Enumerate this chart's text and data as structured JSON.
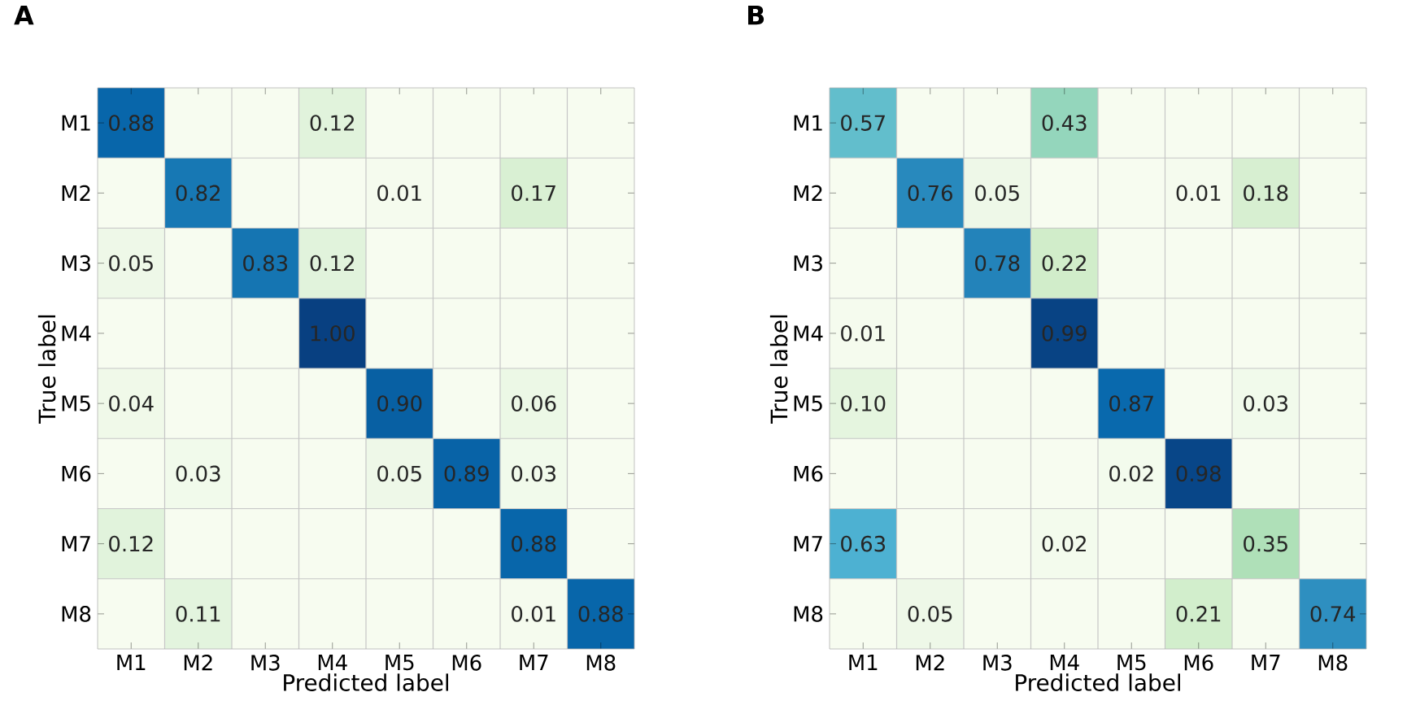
{
  "chart_data": [
    {
      "type": "heatmap",
      "title": "A",
      "xlabel": "Predicted label",
      "ylabel": "True label",
      "categories": [
        "M1",
        "M2",
        "M3",
        "M4",
        "M5",
        "M6",
        "M7",
        "M8"
      ],
      "y_categories": [
        "M1",
        "M2",
        "M3",
        "M4",
        "M5",
        "M6",
        "M7",
        "M8"
      ],
      "cells": [
        [
          0.88,
          null,
          null,
          0.12,
          null,
          null,
          null,
          null
        ],
        [
          null,
          0.82,
          null,
          null,
          0.01,
          null,
          0.17,
          null
        ],
        [
          0.05,
          null,
          0.83,
          0.12,
          null,
          null,
          null,
          null
        ],
        [
          null,
          null,
          null,
          1.0,
          null,
          null,
          null,
          null
        ],
        [
          0.04,
          null,
          null,
          null,
          0.9,
          null,
          0.06,
          null
        ],
        [
          null,
          0.03,
          null,
          null,
          0.05,
          0.89,
          0.03,
          null
        ],
        [
          0.12,
          null,
          null,
          null,
          null,
          null,
          0.88,
          null
        ],
        [
          null,
          0.11,
          null,
          null,
          null,
          null,
          0.01,
          0.88
        ]
      ],
      "cell_labels": [
        [
          "0.88",
          null,
          null,
          "0.12",
          null,
          null,
          null,
          null
        ],
        [
          null,
          "0.82",
          null,
          null,
          "0.01",
          null,
          "0.17",
          null
        ],
        [
          "0.05",
          null,
          "0.83",
          "0.12",
          null,
          null,
          null,
          null
        ],
        [
          null,
          null,
          null,
          "1.00",
          null,
          null,
          null,
          null
        ],
        [
          "0.04",
          null,
          null,
          null,
          "0.90",
          null,
          "0.06",
          null
        ],
        [
          null,
          "0.03",
          null,
          null,
          "0.05",
          "0.89",
          "0.03",
          null
        ],
        [
          "0.12",
          null,
          null,
          null,
          null,
          null,
          "0.88",
          null
        ],
        [
          null,
          "0.11",
          null,
          null,
          null,
          null,
          "0.01",
          "0.88"
        ]
      ]
    },
    {
      "type": "heatmap",
      "title": "B",
      "xlabel": "Predicted label",
      "ylabel": "True label",
      "categories": [
        "M1",
        "M2",
        "M3",
        "M4",
        "M5",
        "M6",
        "M7",
        "M8"
      ],
      "y_categories": [
        "M1",
        "M2",
        "M3",
        "M4",
        "M5",
        "M6",
        "M7",
        "M8"
      ],
      "cells": [
        [
          0.57,
          null,
          null,
          0.43,
          null,
          null,
          null,
          null
        ],
        [
          null,
          0.76,
          0.05,
          null,
          null,
          0.01,
          0.18,
          null
        ],
        [
          null,
          null,
          0.78,
          0.22,
          null,
          null,
          null,
          null
        ],
        [
          0.01,
          null,
          null,
          0.99,
          null,
          null,
          null,
          null
        ],
        [
          0.1,
          null,
          null,
          null,
          0.87,
          null,
          0.03,
          null
        ],
        [
          null,
          null,
          null,
          null,
          0.02,
          0.98,
          null,
          null
        ],
        [
          0.63,
          null,
          null,
          0.02,
          null,
          null,
          0.35,
          null
        ],
        [
          null,
          0.05,
          null,
          null,
          null,
          0.21,
          null,
          0.74
        ]
      ],
      "cell_labels": [
        [
          "0.57",
          null,
          null,
          "0.43",
          null,
          null,
          null,
          null
        ],
        [
          null,
          "0.76",
          "0.05",
          null,
          null,
          "0.01",
          "0.18",
          null
        ],
        [
          null,
          null,
          "0.78",
          "0.22",
          null,
          null,
          null,
          null
        ],
        [
          "0.01",
          null,
          null,
          "0.99",
          null,
          null,
          null,
          null
        ],
        [
          "0.10",
          null,
          null,
          null,
          "0.87",
          null,
          "0.03",
          null
        ],
        [
          null,
          null,
          null,
          null,
          "0.02",
          "0.98",
          null,
          null
        ],
        [
          "0.63",
          null,
          null,
          "0.02",
          null,
          null,
          "0.35",
          null
        ],
        [
          null,
          "0.05",
          null,
          null,
          null,
          "0.21",
          null,
          "0.74"
        ]
      ]
    }
  ]
}
